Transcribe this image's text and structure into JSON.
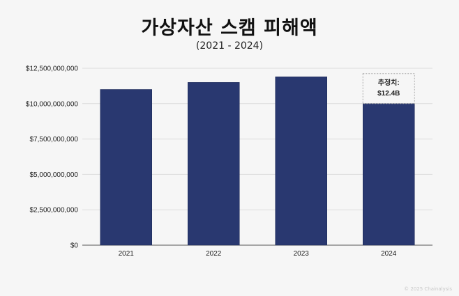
{
  "chart_data": {
    "type": "bar",
    "title": "가상자산 스캠 피해액",
    "subtitle": "(2021 - 2024)",
    "categories": [
      "2021",
      "2022",
      "2023",
      "2024"
    ],
    "values": [
      11000000000,
      11500000000,
      11900000000,
      10000000000
    ],
    "ylim": [
      0,
      12500000000
    ],
    "yticks": [
      "$0",
      "$2,500,000,000",
      "$5,000,000,000",
      "$7,500,000,000",
      "$10,000,000,000",
      "$12,500,000,000"
    ],
    "grid": true,
    "bar_color": "#293870",
    "annotation": {
      "category": "2024",
      "line1": "추정치:",
      "line2": "$12.4B"
    }
  },
  "watermark": "© 2025 Chainalysis"
}
